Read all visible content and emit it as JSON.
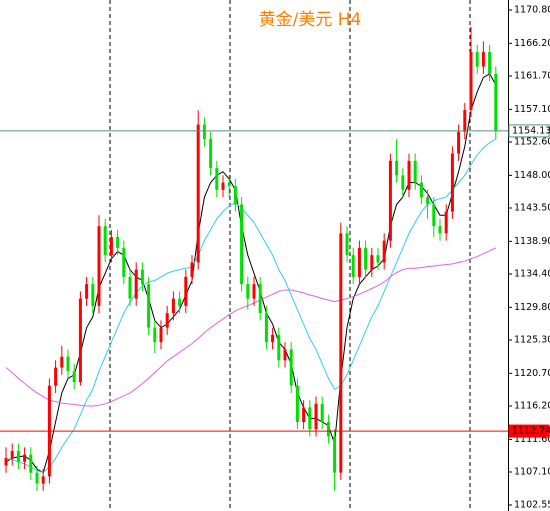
{
  "chart_data": {
    "type": "candlestick",
    "title": "黄金/美元 H4",
    "ylim": [
      1101.72,
      1172.18
    ],
    "yticks": [
      {
        "value": 1170.8,
        "label": "1170.80"
      },
      {
        "value": 1166.2,
        "label": "1166.20"
      },
      {
        "value": 1161.7,
        "label": "1161.70"
      },
      {
        "value": 1157.1,
        "label": "1157.10"
      },
      {
        "value": 1152.6,
        "label": "1152.60"
      },
      {
        "value": 1148,
        "label": "1148.00"
      },
      {
        "value": 1143.5,
        "label": "1143.50"
      },
      {
        "value": 1138.9,
        "label": "1138.90"
      },
      {
        "value": 1134.4,
        "label": "1134.40"
      },
      {
        "value": 1129.8,
        "label": "1129.80"
      },
      {
        "value": 1125.3,
        "label": "1125.30"
      },
      {
        "value": 1120.7,
        "label": "1120.70"
      },
      {
        "value": 1116.2,
        "label": "1116.20"
      },
      {
        "value": 1111.6,
        "label": "1111.60"
      },
      {
        "value": 1107.1,
        "label": "1107.10"
      },
      1102.55
    ],
    "up_color": "#ff0000",
    "down_color": "#00e000",
    "open": [
      1108,
      1109,
      1110,
      1108.5,
      1109.5,
      1107,
      1105.5,
      1106.5,
      1119,
      1121.5,
      1123,
      1121,
      1119.5,
      1131,
      1133,
      1130,
      1141,
      1137,
      1139.5,
      1138,
      1134,
      1131,
      1135,
      1133,
      1127,
      1125,
      1127,
      1129,
      1131,
      1130,
      1134,
      1136,
      1155,
      1153,
      1149,
      1146,
      1147,
      1146.5,
      1144,
      1133,
      1131,
      1133,
      1129,
      1125,
      1126,
      1122.5,
      1124,
      1119,
      1114,
      1116,
      1113,
      1116.5,
      1114,
      1112,
      1107,
      1140,
      1137,
      1134,
      1138,
      1135,
      1137,
      1136,
      1139,
      1150,
      1148,
      1146,
      1150,
      1147,
      1145,
      1144,
      1141,
      1140,
      1143,
      1151,
      1154,
      1157,
      1165,
      1163,
      1165,
      1162
    ],
    "high": [
      1110.5,
      1111,
      1111,
      1110.5,
      1110.5,
      1108,
      1107.5,
      1120,
      1122.5,
      1124.5,
      1124,
      1122,
      1132,
      1134,
      1134,
      1142.5,
      1142,
      1140.5,
      1140.5,
      1139,
      1135,
      1136,
      1136,
      1134,
      1128,
      1128,
      1130,
      1132,
      1132,
      1135,
      1137,
      1157,
      1156,
      1154,
      1150,
      1148,
      1148,
      1147.5,
      1145,
      1134,
      1134,
      1134,
      1130,
      1127,
      1127,
      1125,
      1125,
      1120,
      1117,
      1117,
      1117.5,
      1117.5,
      1115,
      1113,
      1141.5,
      1141,
      1138,
      1139,
      1139,
      1138,
      1138,
      1140,
      1151,
      1153,
      1149,
      1151,
      1151,
      1148,
      1146,
      1145,
      1142,
      1144,
      1152,
      1155,
      1158,
      1168.5,
      1166,
      1166.5,
      1166,
      1163
    ],
    "low": [
      1107,
      1108,
      1107.5,
      1107.5,
      1106,
      1104.5,
      1104.5,
      1105.5,
      1118,
      1120.5,
      1120,
      1118.5,
      1119,
      1130,
      1129,
      1129,
      1136,
      1136,
      1137,
      1133,
      1130,
      1130,
      1132,
      1126,
      1123.5,
      1124,
      1126,
      1128,
      1129,
      1129,
      1133,
      1135,
      1152,
      1148,
      1145,
      1145,
      1145,
      1143,
      1132,
      1129.5,
      1130,
      1128,
      1124,
      1124,
      1121.5,
      1121.5,
      1118,
      1113,
      1113,
      1112,
      1112,
      1113,
      1111,
      1104.5,
      1106,
      1136,
      1133,
      1133,
      1134,
      1134,
      1135,
      1135,
      1138,
      1147,
      1145,
      1145,
      1146,
      1144,
      1142,
      1139.5,
      1139,
      1139,
      1142,
      1150,
      1153,
      1156,
      1162,
      1162,
      1161,
      1153
    ],
    "close": [
      1109,
      1110,
      1108.5,
      1109.5,
      1107,
      1105.5,
      1106.5,
      1119,
      1121.5,
      1123,
      1121,
      1119.5,
      1131,
      1133,
      1130,
      1141,
      1137,
      1139.5,
      1138,
      1134,
      1131,
      1135,
      1133,
      1127,
      1125,
      1127,
      1129,
      1131,
      1130,
      1134,
      1136,
      1155,
      1153,
      1149,
      1146,
      1147,
      1146.5,
      1144,
      1133,
      1131,
      1133,
      1129,
      1125,
      1126,
      1122.5,
      1124,
      1119,
      1114,
      1116,
      1113,
      1116.5,
      1114,
      1112,
      1107,
      1140,
      1137,
      1134,
      1138,
      1135,
      1137,
      1136,
      1139,
      1150,
      1148,
      1146,
      1150,
      1147,
      1145,
      1144,
      1141,
      1140,
      1143,
      1151,
      1154,
      1157,
      1165,
      1163,
      1165,
      1162,
      1154.13
    ],
    "lines": [
      {
        "color": "#000000",
        "values": [
          1108.5,
          1109,
          1109.2,
          1109.3,
          1108.7,
          1107.5,
          1107,
          1110,
          1114,
          1118,
          1120,
          1120.5,
          1123.5,
          1127,
          1128.5,
          1132.5,
          1134.5,
          1136.5,
          1137.5,
          1137,
          1135,
          1134,
          1133.5,
          1131,
          1128,
          1127,
          1127.5,
          1128.5,
          1129.5,
          1131.5,
          1133.5,
          1140,
          1145,
          1147,
          1148,
          1148.5,
          1147.5,
          1146,
          1141,
          1137,
          1134.5,
          1132,
          1129,
          1127.5,
          1125,
          1124,
          1122,
          1118,
          1116,
          1114.5,
          1114.5,
          1114,
          1113.5,
          1111,
          1120,
          1127,
          1131,
          1133,
          1134,
          1135,
          1135.5,
          1136.5,
          1141,
          1144,
          1145,
          1147,
          1147,
          1146.5,
          1145.5,
          1144,
          1142.5,
          1142.5,
          1145.5,
          1148.5,
          1152,
          1157,
          1159.5,
          1161.5,
          1162,
          1160.5
        ]
      },
      {
        "color": "#33ccee",
        "values": [
          1109,
          1108.8,
          1108.5,
          1108.2,
          1107.8,
          1107.3,
          1107,
          1107.8,
          1109,
          1110.5,
          1111.8,
          1113,
          1115,
          1117,
          1118.5,
          1121,
          1123,
          1125,
          1127,
          1129,
          1130.5,
          1131.8,
          1132.8,
          1133.3,
          1133.5,
          1134,
          1134.5,
          1134.8,
          1135,
          1135.2,
          1135.3,
          1137,
          1139,
          1140.5,
          1142,
          1143,
          1143.8,
          1144.2,
          1143.5,
          1142.5,
          1141.5,
          1140,
          1138.5,
          1137,
          1135,
          1133.5,
          1131.5,
          1129.5,
          1127.5,
          1125.5,
          1124,
          1122,
          1120,
          1118.5,
          1119,
          1120.5,
          1122.5,
          1124.5,
          1126.5,
          1128.5,
          1130,
          1132,
          1134,
          1136,
          1138,
          1140,
          1141.5,
          1143,
          1144,
          1144.5,
          1144.8,
          1145,
          1146,
          1147,
          1148,
          1149.5,
          1150.8,
          1151.8,
          1152.5,
          1153
        ]
      },
      {
        "color": "#dd66dd",
        "values": [
          1121.5,
          1120.8,
          1120,
          1119.3,
          1118.6,
          1118,
          1117.5,
          1117,
          1116.8,
          1116.6,
          1116.5,
          1116.4,
          1116.3,
          1116.2,
          1116.2,
          1116.3,
          1116.5,
          1116.8,
          1117.2,
          1117.6,
          1118,
          1118.6,
          1119.3,
          1120,
          1120.8,
          1121.6,
          1122.4,
          1123,
          1123.6,
          1124.2,
          1124.8,
          1125.5,
          1126.3,
          1127,
          1127.6,
          1128.2,
          1128.8,
          1129.3,
          1129.7,
          1130,
          1130.4,
          1130.8,
          1131.2,
          1131.6,
          1132,
          1132.2,
          1132.2,
          1132,
          1131.8,
          1131.5,
          1131.3,
          1131,
          1130.8,
          1130.6,
          1130.8,
          1131,
          1131.3,
          1131.6,
          1132,
          1132.4,
          1132.8,
          1133.3,
          1134,
          1134.6,
          1135,
          1135.2,
          1135.2,
          1135.3,
          1135.4,
          1135.5,
          1135.6,
          1135.7,
          1135.8,
          1136,
          1136.2,
          1136.5,
          1136.8,
          1137.2,
          1137.6,
          1138
        ]
      }
    ],
    "price_lines": [
      {
        "value": 1154.13,
        "color": "#5a8f80",
        "label_bg": "#ffffff",
        "label_color": "#000000"
      },
      {
        "value": 1112.74,
        "color": "#ff0000",
        "label_bg": "#ff0000",
        "label_color": "#ffffff"
      }
    ]
  }
}
